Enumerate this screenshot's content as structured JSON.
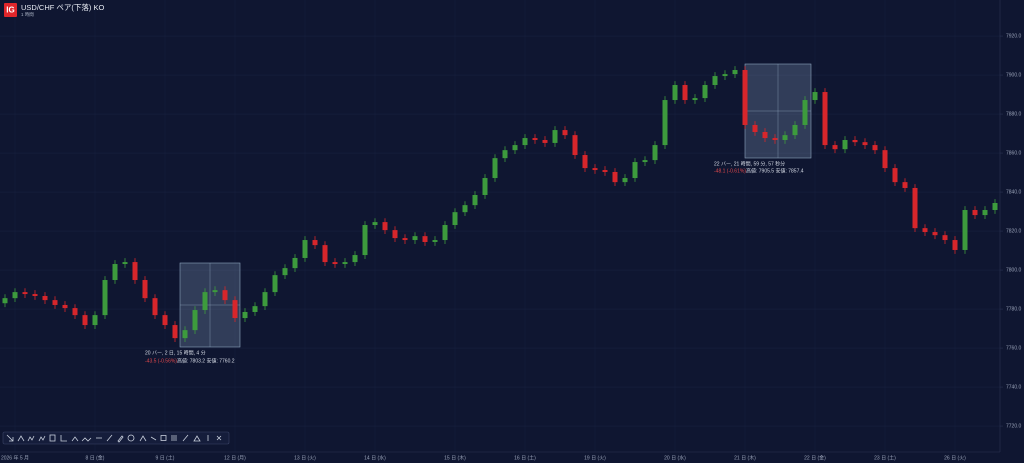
{
  "chart_data": {
    "type": "candlestick",
    "logo": "IG",
    "title": "USD/CHF ペア(下落) KO",
    "subtitle": "1 時間",
    "up_color": "#3d9b3d",
    "down_color": "#d7262b",
    "grid": true,
    "ylim": [
      7706.7,
      7938.5
    ],
    "yticks": [
      {
        "value": 7720,
        "label": "7720.0"
      },
      {
        "value": 7740,
        "label": "7740.0"
      },
      {
        "value": 7760,
        "label": "7760.0"
      },
      {
        "value": 7780,
        "label": "7780.0"
      },
      {
        "value": 7800,
        "label": "7800.0"
      },
      {
        "value": 7820,
        "label": "7820.0"
      },
      {
        "value": 7840,
        "label": "7840.0"
      },
      {
        "value": 7860,
        "label": "7860.0"
      },
      {
        "value": 7880,
        "label": "7880.0"
      },
      {
        "value": 7900,
        "label": "7900.0"
      },
      {
        "value": 7920,
        "label": "7920.0"
      }
    ],
    "categories": [
      null,
      "2026 年 5 月",
      null,
      null,
      null,
      null,
      null,
      null,
      null,
      "8 日 (金)",
      null,
      null,
      null,
      null,
      null,
      null,
      "9 日 (土)",
      null,
      null,
      null,
      null,
      null,
      null,
      "12 日 (月)",
      null,
      null,
      null,
      null,
      null,
      null,
      "13 日 (火)",
      null,
      null,
      null,
      null,
      null,
      null,
      "14 日 (水)",
      null,
      null,
      null,
      null,
      null,
      null,
      null,
      "15 日 (木)",
      null,
      null,
      null,
      null,
      null,
      null,
      "16 日 (土)",
      null,
      null,
      null,
      null,
      null,
      null,
      "19 日 (火)",
      null,
      null,
      null,
      null,
      null,
      null,
      null,
      "20 日 (水)",
      null,
      null,
      null,
      null,
      null,
      null,
      "21 日 (木)",
      null,
      null,
      null,
      null,
      null,
      null,
      "22 日 (金)",
      null,
      null,
      null,
      null,
      null,
      null,
      "23 日 (土)",
      null,
      null,
      null,
      null,
      null,
      null,
      "26 日 (火)",
      null,
      null,
      null,
      null
    ],
    "open": [
      7783.0,
      7785.6,
      7788.7,
      7787.7,
      7786.7,
      7784.6,
      7782.1,
      7780.5,
      7776.9,
      7771.8,
      7776.9,
      7794.9,
      7803.1,
      7804.1,
      7794.9,
      7785.6,
      7776.9,
      7771.8,
      7765.1,
      7769.2,
      7779.5,
      7788.7,
      7789.7,
      7784.6,
      7775.4,
      7778.5,
      7781.5,
      7788.7,
      7797.4,
      7801.0,
      7806.2,
      7815.4,
      7812.8,
      7804.1,
      7803.1,
      7804.1,
      7807.7,
      7823.1,
      7824.6,
      7820.5,
      7816.4,
      7815.4,
      7817.4,
      7814.4,
      7815.4,
      7823.1,
      7829.7,
      7833.3,
      7838.5,
      7847.2,
      7857.4,
      7861.5,
      7864.1,
      7867.7,
      7866.7,
      7865.2,
      7871.8,
      7869.2,
      7859.0,
      7852.3,
      7851.3,
      7850.3,
      7845.1,
      7847.2,
      7855.4,
      7856.4,
      7864.1,
      7887.2,
      7894.9,
      7887.2,
      7888.2,
      7894.9,
      7899.5,
      7900.5,
      7902.6,
      7874.4,
      7870.8,
      7867.7,
      7866.7,
      7869.2,
      7874.4,
      7887.2,
      7891.3,
      7864.1,
      7862.0,
      7866.7,
      7865.6,
      7864.1,
      7861.5,
      7852.3,
      7845.1,
      7842.1,
      7821.5,
      7819.5,
      7817.9,
      7815.4,
      7810.3,
      7830.8,
      7828.2,
      7830.8
    ],
    "high": [
      7787.6,
      7790.7,
      7790.7,
      7789.7,
      7788.7,
      7786.6,
      7784.1,
      7782.5,
      7778.9,
      7778.9,
      7796.9,
      7805.1,
      7806.1,
      7806.1,
      7796.9,
      7787.6,
      7778.9,
      7773.8,
      7771.2,
      7781.5,
      7790.7,
      7791.7,
      7791.7,
      7786.6,
      7780.5,
      7783.5,
      7790.7,
      7799.4,
      7803.0,
      7808.2,
      7817.4,
      7817.4,
      7814.8,
      7806.1,
      7806.1,
      7809.7,
      7825.1,
      7826.6,
      7826.6,
      7822.5,
      7818.4,
      7819.4,
      7819.4,
      7817.4,
      7825.1,
      7831.7,
      7835.3,
      7840.5,
      7849.2,
      7859.4,
      7863.5,
      7866.1,
      7869.7,
      7869.7,
      7868.7,
      7873.8,
      7873.8,
      7871.2,
      7861.0,
      7854.3,
      7853.3,
      7852.3,
      7849.2,
      7857.4,
      7858.4,
      7866.1,
      7889.2,
      7896.9,
      7896.9,
      7890.2,
      7896.9,
      7901.5,
      7902.5,
      7904.6,
      7904.6,
      7876.4,
      7872.8,
      7869.7,
      7871.2,
      7876.4,
      7889.2,
      7893.3,
      7893.3,
      7866.1,
      7868.7,
      7868.7,
      7867.6,
      7866.1,
      7863.5,
      7854.3,
      7847.1,
      7844.1,
      7823.5,
      7821.5,
      7819.9,
      7817.4,
      7832.8,
      7832.8,
      7832.8,
      7836.4
    ],
    "low": [
      7781.0,
      7783.6,
      7785.7,
      7784.7,
      7782.6,
      7780.1,
      7778.5,
      7774.9,
      7769.8,
      7769.8,
      7774.9,
      7792.9,
      7801.1,
      7792.9,
      7783.6,
      7774.9,
      7769.8,
      7763.1,
      7763.1,
      7767.2,
      7777.5,
      7786.7,
      7782.6,
      7773.4,
      7773.4,
      7776.5,
      7779.5,
      7786.7,
      7795.4,
      7799.0,
      7804.2,
      7810.8,
      7802.1,
      7801.1,
      7801.1,
      7802.1,
      7805.7,
      7821.1,
      7818.5,
      7814.4,
      7813.4,
      7813.4,
      7812.4,
      7812.4,
      7813.4,
      7821.1,
      7827.7,
      7831.3,
      7836.5,
      7845.2,
      7855.4,
      7859.5,
      7862.1,
      7864.7,
      7863.2,
      7863.2,
      7867.2,
      7857.0,
      7850.3,
      7849.3,
      7848.3,
      7843.1,
      7843.1,
      7845.2,
      7853.4,
      7854.4,
      7862.1,
      7885.2,
      7885.2,
      7885.2,
      7886.2,
      7892.9,
      7897.5,
      7898.5,
      7872.4,
      7868.8,
      7865.7,
      7864.7,
      7864.7,
      7867.2,
      7872.4,
      7885.2,
      7862.1,
      7860.0,
      7860.0,
      7863.6,
      7862.1,
      7859.5,
      7850.3,
      7843.1,
      7840.1,
      7819.5,
      7817.5,
      7815.9,
      7813.4,
      7808.3,
      7808.3,
      7826.2,
      7826.2,
      7828.8
    ],
    "close": [
      7785.6,
      7788.7,
      7787.7,
      7786.7,
      7784.6,
      7782.1,
      7780.5,
      7776.9,
      7771.8,
      7776.9,
      7794.9,
      7803.1,
      7804.1,
      7794.9,
      7785.6,
      7776.9,
      7771.8,
      7765.1,
      7769.2,
      7779.5,
      7788.7,
      7789.7,
      7784.6,
      7775.4,
      7778.5,
      7781.5,
      7788.7,
      7797.4,
      7801.0,
      7806.2,
      7815.4,
      7812.8,
      7804.1,
      7803.1,
      7804.1,
      7807.7,
      7823.1,
      7824.6,
      7820.5,
      7816.4,
      7815.4,
      7817.4,
      7814.4,
      7815.4,
      7823.1,
      7829.7,
      7833.3,
      7838.5,
      7847.2,
      7857.4,
      7861.5,
      7864.1,
      7867.7,
      7866.7,
      7865.2,
      7871.8,
      7869.2,
      7859.0,
      7852.3,
      7851.3,
      7850.3,
      7845.1,
      7847.2,
      7855.4,
      7856.4,
      7864.1,
      7887.2,
      7894.9,
      7887.2,
      7888.2,
      7894.9,
      7899.5,
      7900.5,
      7902.6,
      7874.4,
      7870.8,
      7867.7,
      7866.7,
      7869.2,
      7874.4,
      7887.2,
      7891.3,
      7864.1,
      7862.0,
      7866.7,
      7865.6,
      7864.1,
      7861.5,
      7852.3,
      7845.1,
      7842.1,
      7821.5,
      7819.5,
      7817.9,
      7815.4,
      7810.3,
      7830.8,
      7828.2,
      7830.8,
      7834.4
    ],
    "annotations": [
      {
        "text": "20 バー, 2 日, 15 時間, 4 分",
        "change": "-43.5 (-0.56%)",
        "range": "高値: 7803.2 安値: 7760.2"
      },
      {
        "text": "22 バー, 21 時間, 59 分, 57 秒分",
        "change": "-48.1 (-0.61%)",
        "range": "高値: 7905.5 安値: 7857.4"
      }
    ]
  }
}
